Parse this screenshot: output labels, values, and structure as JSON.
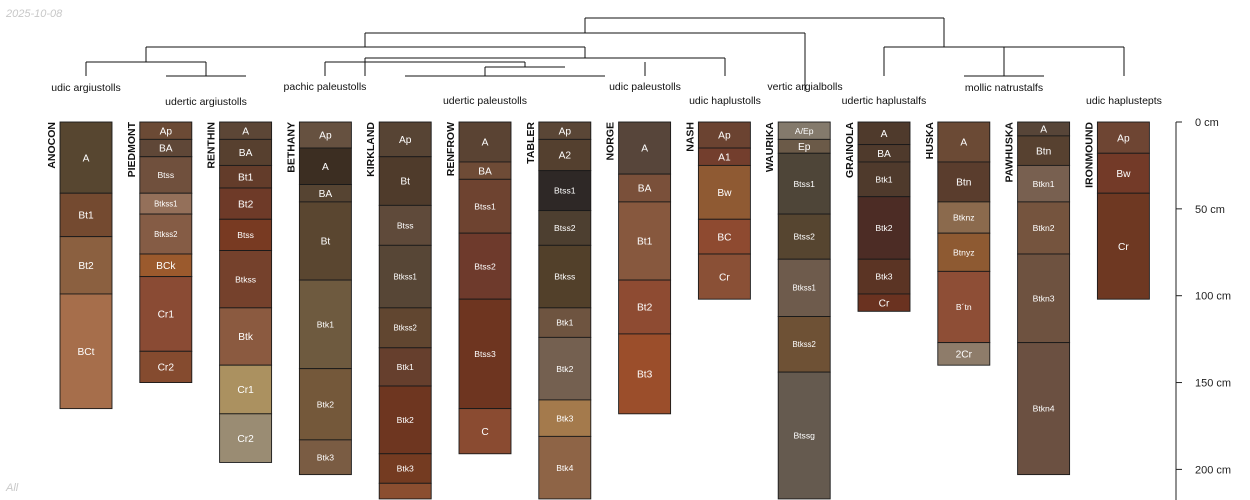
{
  "date_label": "2025-10-08",
  "footer_label": "All",
  "chart_data": {
    "type": "soil-profile-sketch",
    "depth_unit": "cm",
    "depth_ticks": [
      0,
      50,
      100,
      150,
      200
    ],
    "depth_tick_labels": [
      "0 cm",
      "50 cm",
      "100 cm",
      "150 cm",
      "200 cm"
    ],
    "ylim": [
      0,
      217
    ],
    "groups": [
      {
        "label": "udic argiustolls",
        "profiles": [
          0
        ]
      },
      {
        "label": "udertic argiustolls",
        "profiles": [
          1,
          2
        ]
      },
      {
        "label": "pachic paleustolls",
        "profiles": [
          3
        ]
      },
      {
        "label": "udertic paleustolls",
        "profiles": [
          4,
          5,
          6
        ]
      },
      {
        "label": "udic paleustolls",
        "profiles": [
          7
        ]
      },
      {
        "label": "udic haplustolls",
        "profiles": [
          8
        ]
      },
      {
        "label": "vertic argialbolls",
        "profiles": [
          9
        ]
      },
      {
        "label": "udertic haplustalfs",
        "profiles": [
          10
        ]
      },
      {
        "label": "mollic natrustalfs",
        "profiles": [
          11,
          12
        ]
      },
      {
        "label": "udic haplustepts",
        "profiles": [
          13
        ]
      }
    ],
    "profiles": [
      {
        "name": "ANOCON",
        "horizons": [
          {
            "name": "A",
            "top": 0,
            "bottom": 41,
            "color": "#574630"
          },
          {
            "name": "Bt1",
            "top": 41,
            "bottom": 66,
            "color": "#744a30"
          },
          {
            "name": "Bt2",
            "top": 66,
            "bottom": 99,
            "color": "#8b6040"
          },
          {
            "name": "BCt",
            "top": 99,
            "bottom": 165,
            "color": "#a66e4b"
          }
        ]
      },
      {
        "name": "PIEDMONT",
        "horizons": [
          {
            "name": "Ap",
            "top": 0,
            "bottom": 10,
            "color": "#6b4a35"
          },
          {
            "name": "BA",
            "top": 10,
            "bottom": 20,
            "color": "#5f4737"
          },
          {
            "name": "Btss",
            "top": 20,
            "bottom": 41,
            "color": "#70503d"
          },
          {
            "name": "Btkss1",
            "top": 41,
            "bottom": 53,
            "color": "#94705a"
          },
          {
            "name": "Btkss2",
            "top": 53,
            "bottom": 76,
            "color": "#855c45"
          },
          {
            "name": "BCk",
            "top": 76,
            "bottom": 89,
            "color": "#9b5a2d"
          },
          {
            "name": "Cr1",
            "top": 89,
            "bottom": 132,
            "color": "#8a4b34"
          },
          {
            "name": "Cr2",
            "top": 132,
            "bottom": 150,
            "color": "#854b2f"
          }
        ]
      },
      {
        "name": "RENTHIN",
        "horizons": [
          {
            "name": "A",
            "top": 0,
            "bottom": 10,
            "color": "#5c4636"
          },
          {
            "name": "BA",
            "top": 10,
            "bottom": 25,
            "color": "#57402f"
          },
          {
            "name": "Bt1",
            "top": 25,
            "bottom": 38,
            "color": "#633c2a"
          },
          {
            "name": "Bt2",
            "top": 38,
            "bottom": 56,
            "color": "#6e3a28"
          },
          {
            "name": "Btss",
            "top": 56,
            "bottom": 74,
            "color": "#783a22"
          },
          {
            "name": "Btkss",
            "top": 74,
            "bottom": 107,
            "color": "#75412c"
          },
          {
            "name": "Btk",
            "top": 107,
            "bottom": 140,
            "color": "#8b5a40"
          },
          {
            "name": "Cr1",
            "top": 140,
            "bottom": 168,
            "color": "#ab9160"
          },
          {
            "name": "Cr2",
            "top": 168,
            "bottom": 196,
            "color": "#9a8c73"
          }
        ]
      },
      {
        "name": "BETHANY",
        "horizons": [
          {
            "name": "Ap",
            "top": 0,
            "bottom": 15,
            "color": "#665140"
          },
          {
            "name": "A",
            "top": 15,
            "bottom": 36,
            "color": "#3c2e22"
          },
          {
            "name": "BA",
            "top": 36,
            "bottom": 46,
            "color": "#564432"
          },
          {
            "name": "Bt",
            "top": 46,
            "bottom": 91,
            "color": "#5a4630"
          },
          {
            "name": "Btk1",
            "top": 91,
            "bottom": 142,
            "color": "#6e5a3f"
          },
          {
            "name": "Btk2",
            "top": 142,
            "bottom": 183,
            "color": "#74583a"
          },
          {
            "name": "Btk3",
            "top": 183,
            "bottom": 203,
            "color": "#7a5c43"
          }
        ]
      },
      {
        "name": "KIRKLAND",
        "horizons": [
          {
            "name": "Ap",
            "top": 0,
            "bottom": 20,
            "color": "#574434"
          },
          {
            "name": "Bt",
            "top": 20,
            "bottom": 48,
            "color": "#4f3b2b"
          },
          {
            "name": "Btss",
            "top": 48,
            "bottom": 71,
            "color": "#5f4a3a"
          },
          {
            "name": "Btkss1",
            "top": 71,
            "bottom": 107,
            "color": "#574636"
          },
          {
            "name": "Btkss2",
            "top": 107,
            "bottom": 130,
            "color": "#614630"
          },
          {
            "name": "Btk1",
            "top": 130,
            "bottom": 152,
            "color": "#663f2d"
          },
          {
            "name": "Btk2",
            "top": 152,
            "bottom": 191,
            "color": "#6e3620"
          },
          {
            "name": "Btk3",
            "top": 191,
            "bottom": 208,
            "color": "#743b21"
          },
          {
            "name": "",
            "top": 208,
            "bottom": 217,
            "color": "#8b4e30"
          }
        ]
      },
      {
        "name": "RENFROW",
        "horizons": [
          {
            "name": "A",
            "top": 0,
            "bottom": 23,
            "color": "#5a4333"
          },
          {
            "name": "BA",
            "top": 23,
            "bottom": 33,
            "color": "#6e4b36"
          },
          {
            "name": "Btss1",
            "top": 33,
            "bottom": 64,
            "color": "#6e4330"
          },
          {
            "name": "Btss2",
            "top": 64,
            "bottom": 102,
            "color": "#6e3a2c"
          },
          {
            "name": "Btss3",
            "top": 102,
            "bottom": 165,
            "color": "#6e3520"
          },
          {
            "name": "C",
            "top": 165,
            "bottom": 191,
            "color": "#8a4b31"
          }
        ]
      },
      {
        "name": "TABLER",
        "horizons": [
          {
            "name": "Ap",
            "top": 0,
            "bottom": 10,
            "color": "#5a4636"
          },
          {
            "name": "A2",
            "top": 10,
            "bottom": 28,
            "color": "#54402f"
          },
          {
            "name": "Btss1",
            "top": 28,
            "bottom": 51,
            "color": "#2e2826"
          },
          {
            "name": "Btss2",
            "top": 51,
            "bottom": 71,
            "color": "#4d3f30"
          },
          {
            "name": "Btkss",
            "top": 71,
            "bottom": 107,
            "color": "#52402a"
          },
          {
            "name": "Btk1",
            "top": 107,
            "bottom": 124,
            "color": "#6e5440"
          },
          {
            "name": "Btk2",
            "top": 124,
            "bottom": 160,
            "color": "#746050"
          },
          {
            "name": "Btk3",
            "top": 160,
            "bottom": 181,
            "color": "#a47a4c"
          },
          {
            "name": "Btk4",
            "top": 181,
            "bottom": 217,
            "color": "#8e6446"
          }
        ]
      },
      {
        "name": "NORGE",
        "horizons": [
          {
            "name": "A",
            "top": 0,
            "bottom": 30,
            "color": "#57453a"
          },
          {
            "name": "BA",
            "top": 30,
            "bottom": 46,
            "color": "#7a503a"
          },
          {
            "name": "Bt1",
            "top": 46,
            "bottom": 91,
            "color": "#87583e"
          },
          {
            "name": "Bt2",
            "top": 91,
            "bottom": 122,
            "color": "#8e4b32"
          },
          {
            "name": "Bt3",
            "top": 122,
            "bottom": 168,
            "color": "#9b4e2b"
          }
        ]
      },
      {
        "name": "NASH",
        "horizons": [
          {
            "name": "Ap",
            "top": 0,
            "bottom": 15,
            "color": "#6b4331"
          },
          {
            "name": "A1",
            "top": 15,
            "bottom": 25,
            "color": "#733e2d"
          },
          {
            "name": "Bw",
            "top": 25,
            "bottom": 56,
            "color": "#8f5a33"
          },
          {
            "name": "BC",
            "top": 56,
            "bottom": 76,
            "color": "#8e4a30"
          },
          {
            "name": "Cr",
            "top": 76,
            "bottom": 102,
            "color": "#8a5036"
          }
        ]
      },
      {
        "name": "WAURIKA",
        "horizons": [
          {
            "name": "A/Ep",
            "top": 0,
            "bottom": 10,
            "color": "#847a6c"
          },
          {
            "name": "Ep",
            "top": 10,
            "bottom": 18,
            "color": "#6b5a48"
          },
          {
            "name": "Btss1",
            "top": 18,
            "bottom": 53,
            "color": "#4e4538"
          },
          {
            "name": "Btss2",
            "top": 53,
            "bottom": 79,
            "color": "#564530"
          },
          {
            "name": "Btkss1",
            "top": 79,
            "bottom": 112,
            "color": "#6e5b4c"
          },
          {
            "name": "Btkss2",
            "top": 112,
            "bottom": 144,
            "color": "#6e5135"
          },
          {
            "name": "Btssg",
            "top": 144,
            "bottom": 217,
            "color": "#655a4f"
          }
        ]
      },
      {
        "name": "GRAINOLA",
        "horizons": [
          {
            "name": "A",
            "top": 0,
            "bottom": 13,
            "color": "#4f3a2c"
          },
          {
            "name": "BA",
            "top": 13,
            "bottom": 23,
            "color": "#4f3a2c"
          },
          {
            "name": "Btk1",
            "top": 23,
            "bottom": 43,
            "color": "#4f3a2c"
          },
          {
            "name": "Btk2",
            "top": 43,
            "bottom": 79,
            "color": "#4c2c25"
          },
          {
            "name": "Btk3",
            "top": 79,
            "bottom": 99,
            "color": "#5b3424"
          },
          {
            "name": "Cr",
            "top": 99,
            "bottom": 109,
            "color": "#6a3220"
          }
        ]
      },
      {
        "name": "HUSKA",
        "horizons": [
          {
            "name": "A",
            "top": 0,
            "bottom": 23,
            "color": "#6b4a35"
          },
          {
            "name": "Btn",
            "top": 23,
            "bottom": 46,
            "color": "#5a3d2d"
          },
          {
            "name": "Btknz",
            "top": 46,
            "bottom": 64,
            "color": "#8b6a4d"
          },
          {
            "name": "Btnyz",
            "top": 64,
            "bottom": 86,
            "color": "#8e5a32"
          },
          {
            "name": "B´tn",
            "top": 86,
            "bottom": 127,
            "color": "#8e4e36"
          },
          {
            "name": "2Cr",
            "top": 127,
            "bottom": 140,
            "color": "#8e7c6a"
          }
        ]
      },
      {
        "name": "PAWHUSKA",
        "horizons": [
          {
            "name": "A",
            "top": 0,
            "bottom": 8,
            "color": "#574538"
          },
          {
            "name": "Btn",
            "top": 8,
            "bottom": 25,
            "color": "#574130"
          },
          {
            "name": "Btkn1",
            "top": 25,
            "bottom": 46,
            "color": "#786050"
          },
          {
            "name": "Btkn2",
            "top": 46,
            "bottom": 76,
            "color": "#75543e"
          },
          {
            "name": "Btkn3",
            "top": 76,
            "bottom": 127,
            "color": "#6e5240"
          },
          {
            "name": "Btkn4",
            "top": 127,
            "bottom": 203,
            "color": "#6b5041"
          }
        ]
      },
      {
        "name": "IRONMOUND",
        "horizons": [
          {
            "name": "Ap",
            "top": 0,
            "bottom": 18,
            "color": "#6e4533"
          },
          {
            "name": "Bw",
            "top": 18,
            "bottom": 41,
            "color": "#733a28"
          },
          {
            "name": "Cr",
            "top": 41,
            "bottom": 102,
            "color": "#6e3822"
          }
        ]
      }
    ]
  }
}
